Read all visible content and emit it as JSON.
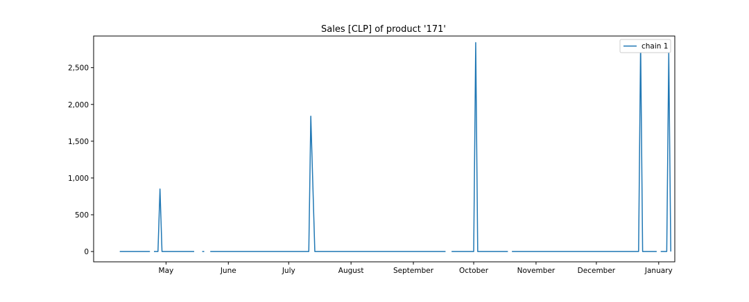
{
  "chart_data": {
    "type": "line",
    "title": "Sales [CLP] of product '171'",
    "xlabel": "",
    "ylabel": "",
    "x_tick_labels": [
      "May",
      "June",
      "July",
      "August",
      "September",
      "October",
      "November",
      "December",
      "January"
    ],
    "x_tick_dates": [
      "2021-05-01",
      "2021-06-01",
      "2021-07-01",
      "2021-08-01",
      "2021-09-01",
      "2021-10-01",
      "2021-11-01",
      "2021-12-01",
      "2022-01-01"
    ],
    "xlim": [
      "2021-03-26",
      "2022-01-09"
    ],
    "y_ticks": [
      0,
      500,
      1000,
      1500,
      2000,
      2500
    ],
    "y_tick_labels": [
      "0",
      "500",
      "1,000",
      "1,500",
      "2,000",
      "2,500"
    ],
    "ylim": [
      -140,
      2930
    ],
    "grid": false,
    "legend": {
      "position": "top-right",
      "entries": [
        "chain 1"
      ]
    },
    "series_color": "#1f77b4",
    "series": [
      {
        "name": "chain 1",
        "segments": [
          [
            [
              "2021-04-08",
              0
            ],
            [
              "2021-04-23",
              0
            ]
          ],
          [
            [
              "2021-04-25",
              0
            ],
            [
              "2021-04-27",
              0
            ],
            [
              "2021-04-28",
              850
            ],
            [
              "2021-04-29",
              0
            ],
            [
              "2021-05-15",
              0
            ]
          ],
          [
            [
              "2021-05-19",
              0
            ],
            [
              "2021-05-20",
              0
            ]
          ],
          [
            [
              "2021-05-23",
              0
            ],
            [
              "2021-07-11",
              0
            ],
            [
              "2021-07-12",
              1840
            ],
            [
              "2021-07-14",
              0
            ],
            [
              "2021-09-17",
              0
            ]
          ],
          [
            [
              "2021-09-20",
              0
            ],
            [
              "2021-10-01",
              0
            ],
            [
              "2021-10-02",
              2840
            ],
            [
              "2021-10-03",
              0
            ],
            [
              "2021-10-18",
              0
            ]
          ],
          [
            [
              "2021-10-20",
              0
            ],
            [
              "2021-12-22",
              0
            ],
            [
              "2021-12-23",
              2840
            ],
            [
              "2021-12-24",
              0
            ],
            [
              "2021-12-31",
              0
            ]
          ],
          [
            [
              "2022-01-02",
              0
            ],
            [
              "2022-01-05",
              0
            ],
            [
              "2022-01-06",
              2700
            ],
            [
              "2022-01-07",
              0
            ]
          ]
        ]
      }
    ]
  }
}
